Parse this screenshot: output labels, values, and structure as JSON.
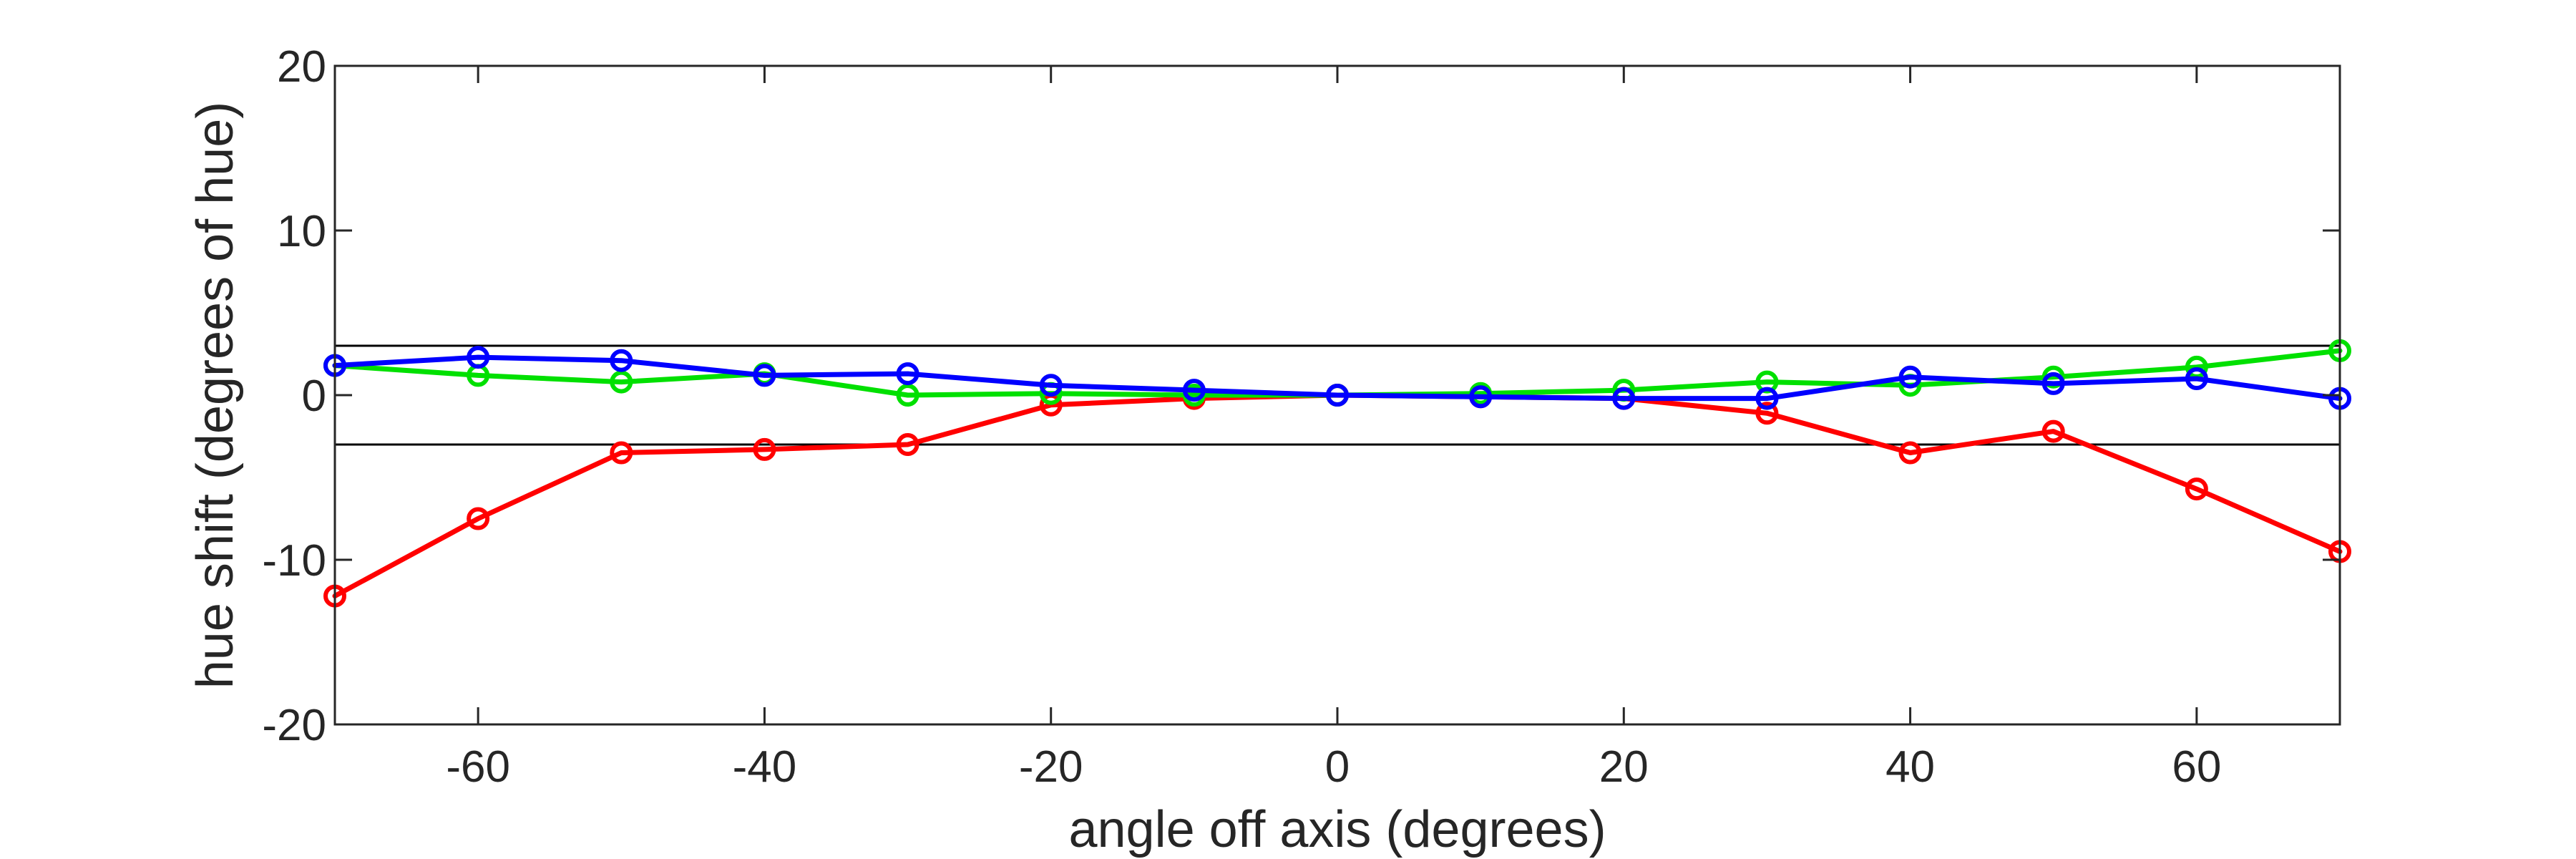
{
  "chart_data": {
    "type": "line",
    "title": "",
    "xlabel": "angle off axis (degrees)",
    "ylabel": "hue shift (degrees of hue)",
    "xlim": [
      -70,
      70
    ],
    "ylim": [
      -20,
      20
    ],
    "xticks": [
      -60,
      -40,
      -20,
      0,
      20,
      40,
      60
    ],
    "yticks": [
      -20,
      -10,
      0,
      10,
      20
    ],
    "reference_lines": [
      3,
      -3
    ],
    "grid": false,
    "legend": "none",
    "x": [
      -70,
      -60,
      -50,
      -40,
      -30,
      -20,
      -10,
      0,
      10,
      20,
      30,
      40,
      50,
      60,
      70
    ],
    "series": [
      {
        "color": "#ff0000",
        "values": [
          -12.2,
          -7.5,
          -3.5,
          -3.3,
          -3.0,
          -0.6,
          -0.2,
          0.0,
          -0.1,
          -0.2,
          -1.1,
          -3.5,
          -2.2,
          -5.7,
          -9.5
        ]
      },
      {
        "color": "#00e000",
        "values": [
          1.8,
          1.2,
          0.8,
          1.3,
          0.0,
          0.1,
          0.0,
          0.0,
          0.1,
          0.3,
          0.8,
          0.6,
          1.1,
          1.7,
          2.7
        ]
      },
      {
        "color": "#0000ff",
        "values": [
          1.8,
          2.3,
          2.1,
          1.2,
          1.3,
          0.6,
          0.3,
          0.0,
          -0.1,
          -0.2,
          -0.2,
          1.1,
          0.7,
          1.0,
          -0.2
        ]
      }
    ]
  }
}
